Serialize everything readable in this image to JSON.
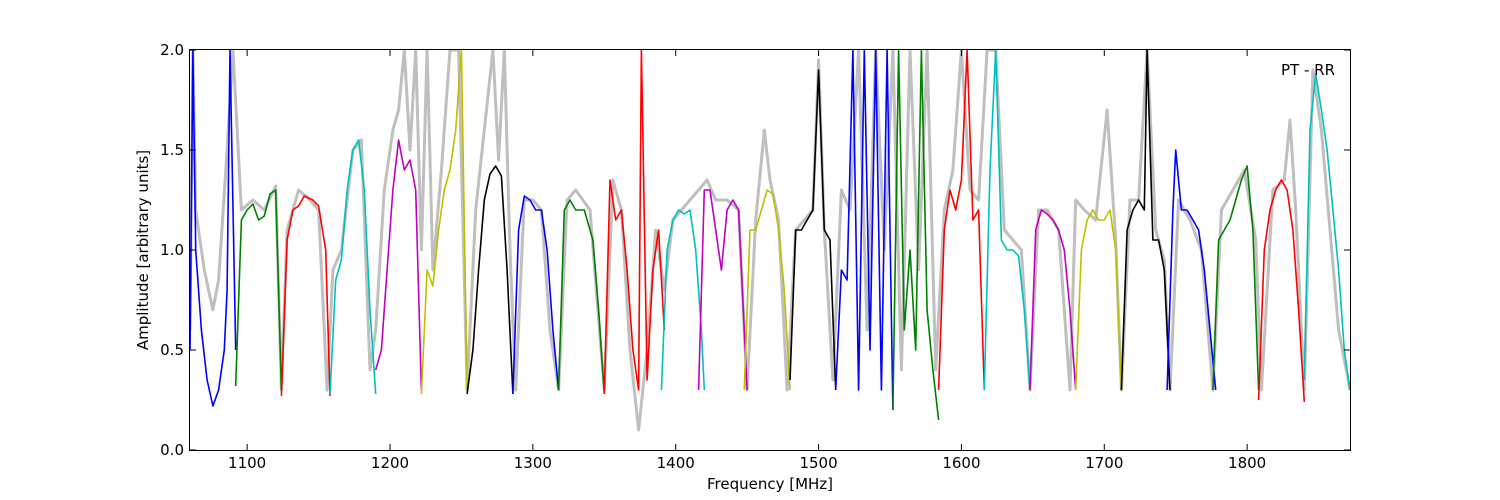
{
  "chart_data": {
    "type": "line",
    "title": "",
    "annotation": "PT - RR",
    "xlabel": "Frequency [MHz]",
    "ylabel": "Amplitude [arbitrary units]",
    "xlim": [
      1060,
      1872
    ],
    "ylim": [
      0.0,
      2.0
    ],
    "x_ticks": [
      1100,
      1200,
      1300,
      1400,
      1500,
      1600,
      1700,
      1800
    ],
    "x_tick_labels": [
      "1100",
      "1200",
      "1300",
      "1400",
      "1500",
      "1600",
      "1700",
      "1800"
    ],
    "y_ticks": [
      0.0,
      0.5,
      1.0,
      1.5,
      2.0
    ],
    "y_tick_labels": [
      "0.0",
      "0.5",
      "1.0",
      "1.5",
      "2.0"
    ],
    "grid": false,
    "background_color": "#bfbfbf",
    "band_colors": [
      "#0000ff",
      "#008000",
      "#ff0000",
      "#00bfbf",
      "#bf00bf",
      "#bfbf00",
      "#000000"
    ],
    "series": [
      {
        "color": "#0000ff",
        "x": [
          1060,
          1062,
          1064,
          1068,
          1072,
          1076,
          1080,
          1084,
          1086,
          1088,
          1092
        ],
        "y": [
          0.5,
          2.0,
          1.0,
          0.6,
          0.35,
          0.22,
          0.3,
          0.5,
          0.8,
          2.0,
          0.5
        ]
      },
      {
        "color": "#008000",
        "x": [
          1092,
          1096,
          1100,
          1104,
          1108,
          1112,
          1116,
          1120,
          1124
        ],
        "y": [
          0.32,
          1.15,
          1.2,
          1.23,
          1.15,
          1.17,
          1.28,
          1.3,
          0.3
        ]
      },
      {
        "color": "#ff0000",
        "x": [
          1124,
          1128,
          1132,
          1136,
          1140,
          1146,
          1150,
          1155,
          1158
        ],
        "y": [
          0.27,
          1.05,
          1.2,
          1.22,
          1.27,
          1.25,
          1.22,
          1.0,
          0.27
        ]
      },
      {
        "color": "#00bfbf",
        "x": [
          1158,
          1162,
          1166,
          1170,
          1174,
          1178,
          1182,
          1186,
          1190
        ],
        "y": [
          0.28,
          0.85,
          0.95,
          1.3,
          1.5,
          1.55,
          1.3,
          0.7,
          0.28
        ]
      },
      {
        "color": "#bf00bf",
        "x": [
          1190,
          1194,
          1198,
          1202,
          1206,
          1210,
          1214,
          1218,
          1222
        ],
        "y": [
          0.4,
          0.5,
          0.9,
          1.3,
          1.55,
          1.4,
          1.45,
          1.3,
          0.3
        ]
      },
      {
        "color": "#bfbf00",
        "x": [
          1222,
          1226,
          1230,
          1234,
          1238,
          1242,
          1246,
          1250,
          1254
        ],
        "y": [
          0.28,
          0.9,
          0.82,
          1.1,
          1.3,
          1.4,
          1.6,
          2.0,
          0.3
        ]
      },
      {
        "color": "#000000",
        "x": [
          1254,
          1258,
          1262,
          1266,
          1270,
          1274,
          1278,
          1282,
          1286
        ],
        "y": [
          0.28,
          0.5,
          0.9,
          1.25,
          1.38,
          1.42,
          1.37,
          0.9,
          0.28
        ]
      },
      {
        "color": "#0000ff",
        "x": [
          1286,
          1290,
          1294,
          1298,
          1302,
          1306,
          1310,
          1314,
          1318
        ],
        "y": [
          0.28,
          1.1,
          1.27,
          1.25,
          1.2,
          1.2,
          1.0,
          0.6,
          0.3
        ]
      },
      {
        "color": "#008000",
        "x": [
          1318,
          1322,
          1326,
          1330,
          1336,
          1342,
          1346,
          1350
        ],
        "y": [
          0.3,
          1.2,
          1.25,
          1.2,
          1.2,
          1.05,
          0.7,
          0.28
        ]
      },
      {
        "color": "#ff0000",
        "x": [
          1350,
          1354,
          1358,
          1362,
          1366,
          1370,
          1374,
          1376,
          1380,
          1384,
          1388,
          1392
        ],
        "y": [
          0.28,
          1.35,
          1.15,
          1.2,
          0.9,
          0.5,
          0.3,
          2.0,
          0.35,
          0.9,
          1.1,
          0.6
        ]
      },
      {
        "color": "#00bfbf",
        "x": [
          1390,
          1394,
          1398,
          1402,
          1406,
          1410,
          1414,
          1418,
          1420
        ],
        "y": [
          0.3,
          1.0,
          1.15,
          1.2,
          1.18,
          1.2,
          1.0,
          0.6,
          0.3
        ]
      },
      {
        "color": "#bf00bf",
        "x": [
          1416,
          1420,
          1424,
          1428,
          1432,
          1436,
          1440,
          1444,
          1450
        ],
        "y": [
          0.3,
          1.3,
          1.3,
          1.1,
          0.9,
          1.2,
          1.25,
          1.2,
          0.3
        ]
      },
      {
        "color": "#bfbf00",
        "x": [
          1448,
          1452,
          1456,
          1460,
          1464,
          1468,
          1472,
          1476,
          1480
        ],
        "y": [
          0.3,
          1.1,
          1.1,
          1.2,
          1.3,
          1.28,
          1.1,
          0.8,
          0.3
        ]
      },
      {
        "color": "#000000",
        "x": [
          1480,
          1484,
          1488,
          1492,
          1496,
          1500,
          1504,
          1508,
          1512
        ],
        "y": [
          0.35,
          1.1,
          1.1,
          1.15,
          1.2,
          1.9,
          1.1,
          1.05,
          0.3
        ]
      },
      {
        "color": "#0000ff",
        "x": [
          1512,
          1516,
          1520,
          1524,
          1528,
          1532,
          1536,
          1540,
          1544,
          1548,
          1552
        ],
        "y": [
          0.3,
          0.9,
          0.85,
          2.0,
          0.3,
          2.0,
          0.5,
          2.0,
          0.3,
          2.0,
          0.2
        ]
      },
      {
        "color": "#008000",
        "x": [
          1552,
          1556,
          1560,
          1564,
          1568,
          1572,
          1576,
          1580,
          1584
        ],
        "y": [
          0.2,
          2.0,
          0.6,
          1.0,
          0.5,
          2.0,
          0.7,
          0.4,
          0.15
        ]
      },
      {
        "color": "#ff0000",
        "x": [
          1584,
          1588,
          1592,
          1596,
          1600,
          1604,
          1608,
          1612,
          1616
        ],
        "y": [
          0.3,
          1.1,
          1.3,
          1.2,
          1.35,
          2.0,
          1.15,
          1.2,
          0.3
        ]
      },
      {
        "color": "#00bfbf",
        "x": [
          1616,
          1620,
          1624,
          1628,
          1632,
          1636,
          1640,
          1644,
          1648
        ],
        "y": [
          0.3,
          1.4,
          2.0,
          1.05,
          1.0,
          1.0,
          0.97,
          0.7,
          0.3
        ]
      },
      {
        "color": "#bf00bf",
        "x": [
          1648,
          1652,
          1656,
          1660,
          1664,
          1668,
          1672,
          1676,
          1680
        ],
        "y": [
          0.3,
          1.1,
          1.2,
          1.18,
          1.15,
          1.1,
          1.0,
          0.7,
          0.3
        ]
      },
      {
        "color": "#bfbf00",
        "x": [
          1680,
          1684,
          1688,
          1692,
          1696,
          1700,
          1704,
          1708,
          1712
        ],
        "y": [
          0.3,
          1.0,
          1.15,
          1.2,
          1.15,
          1.15,
          1.2,
          1.0,
          0.3
        ]
      },
      {
        "color": "#000000",
        "x": [
          1712,
          1716,
          1720,
          1724,
          1728,
          1730,
          1734,
          1738,
          1742,
          1746
        ],
        "y": [
          0.3,
          1.1,
          1.2,
          1.25,
          1.2,
          2.0,
          1.05,
          1.05,
          0.9,
          0.3
        ]
      },
      {
        "color": "#0000ff",
        "x": [
          1744,
          1748,
          1750,
          1754,
          1758,
          1762,
          1766,
          1770,
          1774,
          1778
        ],
        "y": [
          0.3,
          1.2,
          1.5,
          1.2,
          1.2,
          1.15,
          1.1,
          0.9,
          0.6,
          0.3
        ]
      },
      {
        "color": "#008000",
        "x": [
          1776,
          1780,
          1784,
          1788,
          1792,
          1796,
          1800,
          1804,
          1808
        ],
        "y": [
          0.3,
          1.05,
          1.1,
          1.15,
          1.25,
          1.35,
          1.42,
          1.1,
          0.3
        ]
      },
      {
        "color": "#ff0000",
        "x": [
          1808,
          1812,
          1816,
          1820,
          1824,
          1828,
          1832,
          1836,
          1840
        ],
        "y": [
          0.25,
          1.0,
          1.2,
          1.3,
          1.35,
          1.3,
          1.1,
          0.7,
          0.24
        ]
      },
      {
        "color": "#00bfbf",
        "x": [
          1840,
          1844,
          1848,
          1852,
          1856,
          1860,
          1864,
          1868,
          1872
        ],
        "y": [
          0.35,
          1.6,
          1.88,
          1.7,
          1.5,
          1.2,
          0.9,
          0.5,
          0.3
        ]
      }
    ],
    "background": {
      "x": [
        1060,
        1062,
        1064,
        1070,
        1076,
        1080,
        1086,
        1090,
        1096,
        1104,
        1112,
        1120,
        1124,
        1128,
        1136,
        1144,
        1150,
        1156,
        1160,
        1166,
        1174,
        1180,
        1186,
        1190,
        1196,
        1202,
        1206,
        1210,
        1214,
        1218,
        1222,
        1226,
        1230,
        1236,
        1242,
        1248,
        1254,
        1260,
        1266,
        1272,
        1276,
        1280,
        1284,
        1288,
        1294,
        1300,
        1306,
        1312,
        1318,
        1324,
        1330,
        1340,
        1350,
        1356,
        1362,
        1368,
        1374,
        1380,
        1386,
        1392,
        1398,
        1404,
        1410,
        1416,
        1422,
        1428,
        1436,
        1444,
        1450,
        1456,
        1462,
        1466,
        1472,
        1478,
        1484,
        1490,
        1496,
        1500,
        1504,
        1510,
        1516,
        1522,
        1528,
        1534,
        1540,
        1546,
        1552,
        1558,
        1564,
        1570,
        1576,
        1582,
        1588,
        1594,
        1600,
        1606,
        1612,
        1618,
        1624,
        1630,
        1636,
        1642,
        1648,
        1654,
        1660,
        1668,
        1676,
        1680,
        1686,
        1694,
        1702,
        1708,
        1712,
        1718,
        1724,
        1730,
        1736,
        1742,
        1746,
        1752,
        1760,
        1768,
        1776,
        1782,
        1790,
        1798,
        1806,
        1810,
        1818,
        1826,
        1830,
        1834,
        1840,
        1846,
        1852,
        1858,
        1864,
        1872
      ],
      "y": [
        0.6,
        2.0,
        1.2,
        0.9,
        0.7,
        0.85,
        1.5,
        2.0,
        1.2,
        1.25,
        1.2,
        1.32,
        0.3,
        1.1,
        1.3,
        1.25,
        1.2,
        0.3,
        0.9,
        1.0,
        1.5,
        1.55,
        0.4,
        0.6,
        1.3,
        1.6,
        1.7,
        2.0,
        1.5,
        2.0,
        1.0,
        2.0,
        0.9,
        1.4,
        2.0,
        2.0,
        0.3,
        1.2,
        1.6,
        2.0,
        1.45,
        2.0,
        1.0,
        0.3,
        1.25,
        1.25,
        1.2,
        0.6,
        0.3,
        1.25,
        1.3,
        1.2,
        0.3,
        1.35,
        1.2,
        0.5,
        0.1,
        0.5,
        1.1,
        0.8,
        1.15,
        1.2,
        1.25,
        1.3,
        1.35,
        1.25,
        1.25,
        1.2,
        0.3,
        1.15,
        1.6,
        1.35,
        1.15,
        0.3,
        1.1,
        1.15,
        1.2,
        1.95,
        1.1,
        0.35,
        1.3,
        1.2,
        2.0,
        0.6,
        2.0,
        1.0,
        2.0,
        0.4,
        2.0,
        0.9,
        2.0,
        0.4,
        1.2,
        1.4,
        2.0,
        1.3,
        1.25,
        2.0,
        2.0,
        1.1,
        1.05,
        1.0,
        0.3,
        1.2,
        1.2,
        1.1,
        0.3,
        1.25,
        1.2,
        1.15,
        1.7,
        1.05,
        0.3,
        1.25,
        1.25,
        2.0,
        1.1,
        0.95,
        0.3,
        1.25,
        1.15,
        1.0,
        0.3,
        1.2,
        1.3,
        1.4,
        1.05,
        0.3,
        1.3,
        1.35,
        1.65,
        1.2,
        0.3,
        1.9,
        1.6,
        1.1,
        0.6,
        0.3
      ]
    }
  }
}
